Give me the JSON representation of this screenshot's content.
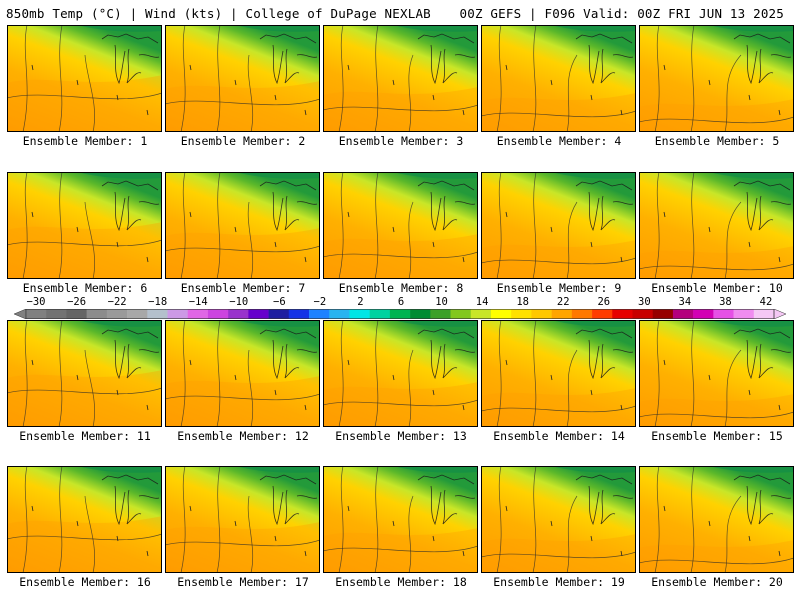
{
  "header": {
    "left": "850mb Temp (°C) | Wind (kts) | College of DuPage NEXLAB",
    "right": "00Z GEFS | F096 Valid: 00Z FRI JUN 13 2025"
  },
  "panels": [
    {
      "label": "Ensemble Member: 1",
      "member": 1
    },
    {
      "label": "Ensemble Member: 2",
      "member": 2
    },
    {
      "label": "Ensemble Member: 3",
      "member": 3
    },
    {
      "label": "Ensemble Member: 4",
      "member": 4
    },
    {
      "label": "Ensemble Member: 5",
      "member": 5
    },
    {
      "label": "Ensemble Member: 6",
      "member": 6
    },
    {
      "label": "Ensemble Member: 7",
      "member": 7
    },
    {
      "label": "Ensemble Member: 8",
      "member": 8
    },
    {
      "label": "Ensemble Member: 9",
      "member": 9
    },
    {
      "label": "Ensemble Member: 10",
      "member": 10
    },
    {
      "label": "Ensemble Member: 11",
      "member": 11
    },
    {
      "label": "Ensemble Member: 12",
      "member": 12
    },
    {
      "label": "Ensemble Member: 13",
      "member": 13
    },
    {
      "label": "Ensemble Member: 14",
      "member": 14
    },
    {
      "label": "Ensemble Member: 15",
      "member": 15
    },
    {
      "label": "Ensemble Member: 16",
      "member": 16
    },
    {
      "label": "Ensemble Member: 17",
      "member": 17
    },
    {
      "label": "Ensemble Member: 18",
      "member": 18
    },
    {
      "label": "Ensemble Member: 19",
      "member": 19
    },
    {
      "label": "Ensemble Member: 20",
      "member": 20
    }
  ],
  "colorbar": {
    "tick_labels": [
      "−30",
      "−26",
      "−22",
      "−18",
      "−14",
      "−10",
      "−6",
      "−2",
      "2",
      "6",
      "10",
      "14",
      "18",
      "22",
      "26",
      "30",
      "34",
      "38",
      "42"
    ],
    "colors": [
      "#808080",
      "#727272",
      "#656565",
      "#8c8c8c",
      "#9a9a9a",
      "#a8a8a8",
      "#b4c0cc",
      "#cc99e6",
      "#e066e6",
      "#cc44e0",
      "#9932cc",
      "#6600cc",
      "#1e1ea0",
      "#1432e6",
      "#1e82ff",
      "#28b4f0",
      "#00e6e6",
      "#00d2a0",
      "#00b450",
      "#008c32",
      "#3ca028",
      "#82c81e",
      "#c8e628",
      "#ffff00",
      "#ffe100",
      "#ffc800",
      "#ffa500",
      "#ff7800",
      "#ff3c00",
      "#e60000",
      "#c80000",
      "#960000",
      "#b4007d",
      "#d200b4",
      "#e650e6",
      "#f08cf0",
      "#f5c8f5"
    ]
  }
}
